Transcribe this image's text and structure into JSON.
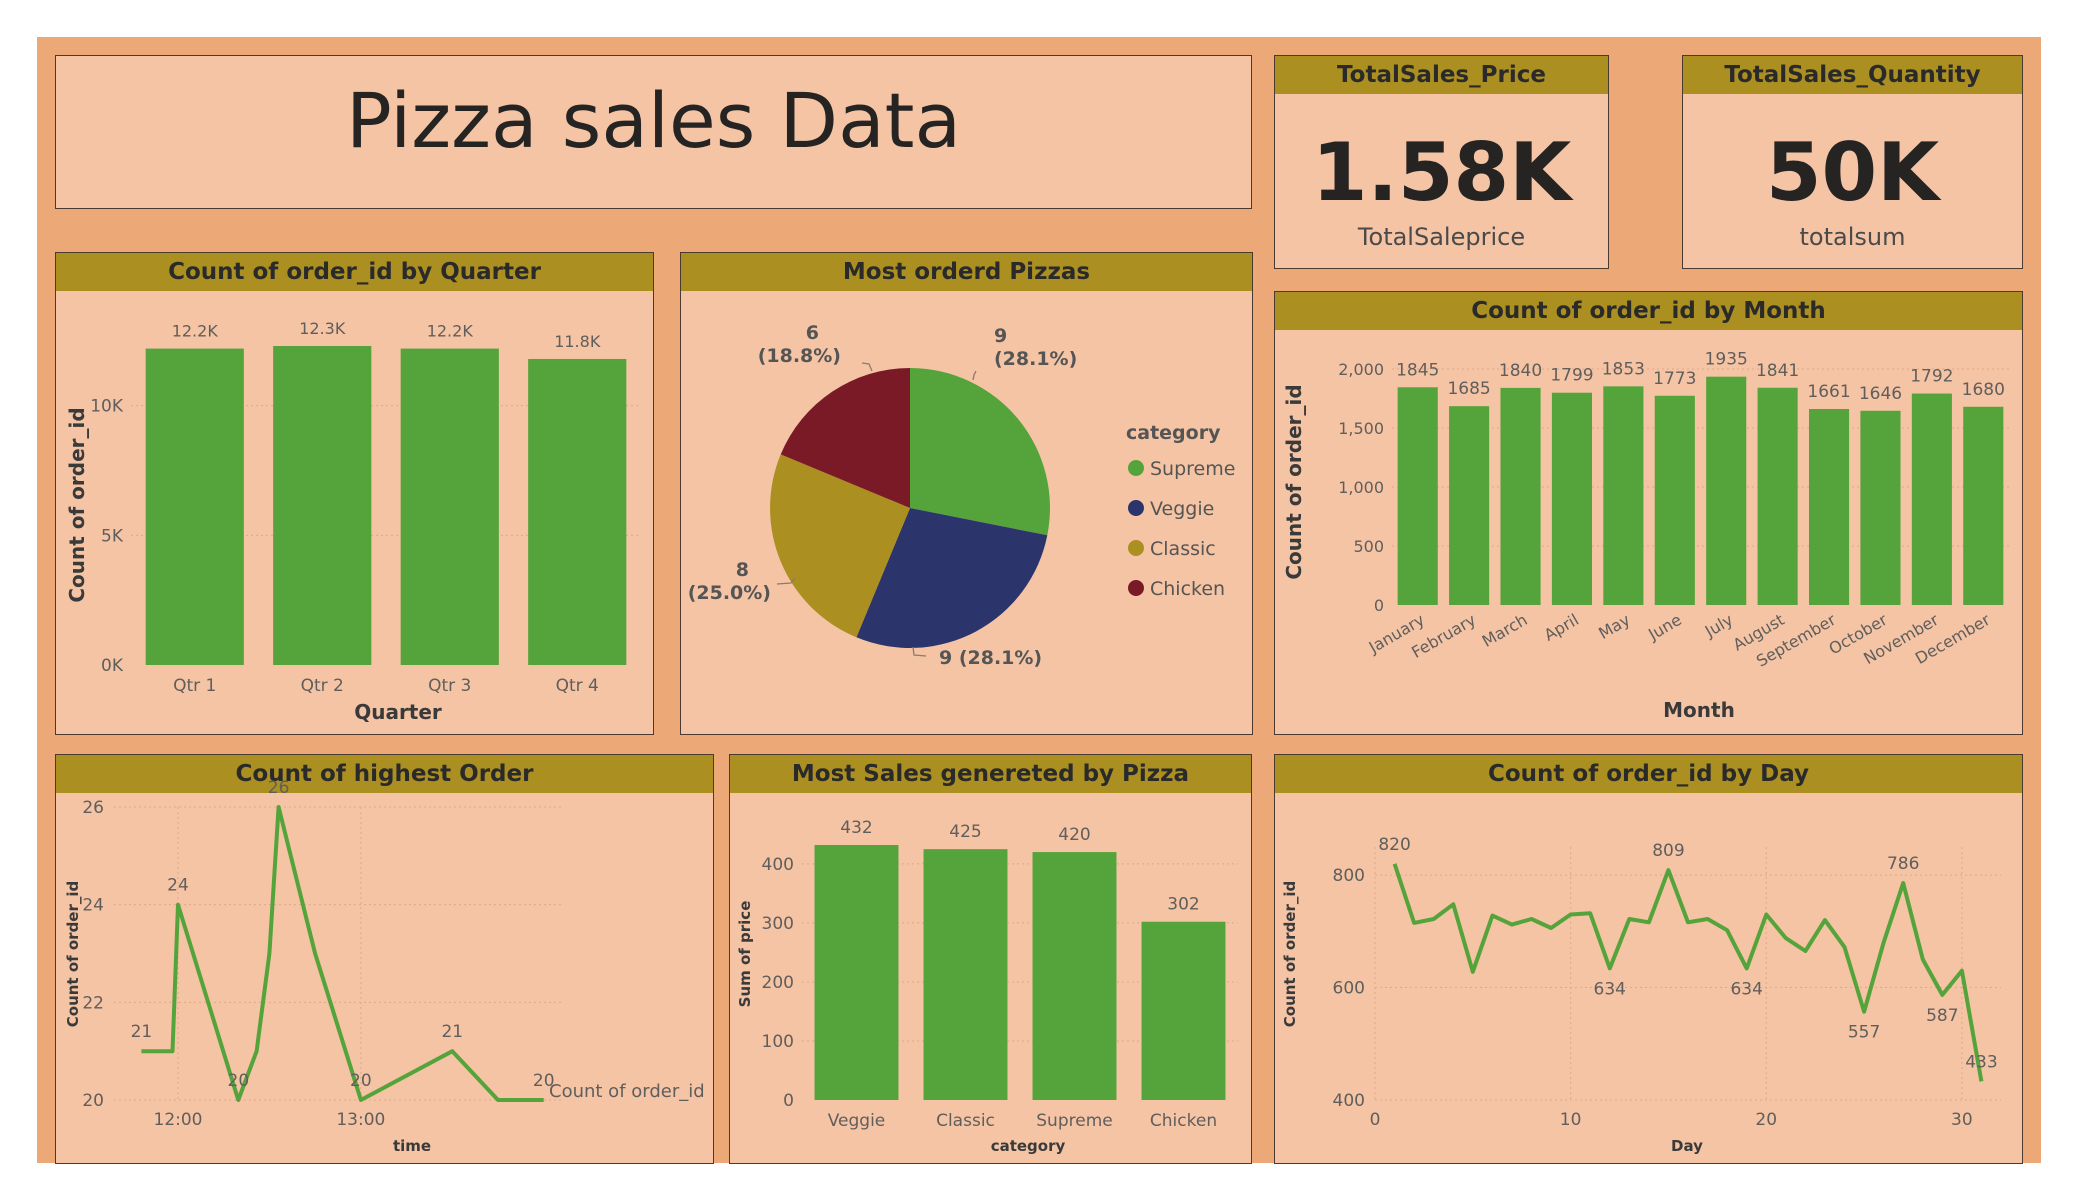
{
  "page_title": "Pizza sales Data",
  "colors": {
    "green": "#55a33b",
    "navy": "#2c356b",
    "olive": "#ab8f21",
    "maroon": "#7b1a27",
    "band": "#ab8f21",
    "panel": "#f4c4a5",
    "background": "#eda878"
  },
  "kpis": [
    {
      "title": "TotalSales_Price",
      "value": "1.58K",
      "label": "TotalSaleprice"
    },
    {
      "title": "TotalSales_Quantity",
      "value": "50K",
      "label": "totalsum"
    }
  ],
  "chart_data": [
    {
      "id": "quarter",
      "type": "bar",
      "title": "Count of order_id by Quarter",
      "xlabel": "Quarter",
      "ylabel": "Count of order_id",
      "categories": [
        "Qtr 1",
        "Qtr 2",
        "Qtr 3",
        "Qtr 4"
      ],
      "values": [
        12200,
        12300,
        12200,
        11800
      ],
      "data_labels": [
        "12.2K",
        "12.3K",
        "12.2K",
        "11.8K"
      ],
      "ylim": [
        0,
        12300
      ],
      "yticks": [
        0,
        5000,
        10000
      ],
      "ytick_labels": [
        "0K",
        "5K",
        "10K"
      ],
      "grid": true
    },
    {
      "id": "pie",
      "type": "pie",
      "title": "Most orderd Pizzas",
      "legend_title": "category",
      "legend_position": "right",
      "slices": [
        {
          "label": "Supreme",
          "value": 9,
          "percent": "28.1%",
          "color": "#55a33b"
        },
        {
          "label": "Veggie",
          "value": 9,
          "percent": "28.1%",
          "color": "#2c356b"
        },
        {
          "label": "Classic",
          "value": 8,
          "percent": "25.0%",
          "color": "#ab8f21"
        },
        {
          "label": "Chicken",
          "value": 6,
          "percent": "18.8%",
          "color": "#7b1a27"
        }
      ],
      "slice_labels": [
        {
          "value": "9",
          "pct": "(28.1%)"
        },
        {
          "text": "9 (28.1%)"
        },
        {
          "value": "8",
          "pct": "(25.0%)"
        },
        {
          "value": "6",
          "pct": "(18.8%)"
        }
      ]
    },
    {
      "id": "month",
      "type": "bar",
      "title": "Count of order_id by Month",
      "xlabel": "Month",
      "ylabel": "Count of order_id",
      "categories": [
        "January",
        "February",
        "March",
        "April",
        "May",
        "June",
        "July",
        "August",
        "September",
        "October",
        "November",
        "December"
      ],
      "values": [
        1845,
        1685,
        1840,
        1799,
        1853,
        1773,
        1935,
        1841,
        1661,
        1646,
        1792,
        1680
      ],
      "ylim": [
        0,
        2000
      ],
      "yticks": [
        0,
        500,
        1000,
        1500,
        2000
      ],
      "ytick_labels": [
        "0",
        "500",
        "1,000",
        "1,500",
        "2,000"
      ],
      "grid": true
    },
    {
      "id": "highest",
      "type": "line",
      "title": "Count of highest Order",
      "xlabel": "time",
      "ylabel": "Count of order_id",
      "legend": "Count of order_id",
      "x": [
        11.8,
        11.95,
        11.97,
        12.0,
        12.33,
        12.43,
        12.5,
        12.55,
        12.75,
        13.0,
        13.0,
        13.5,
        13.75,
        14.0,
        14.0
      ],
      "y": [
        21,
        21,
        21,
        24,
        20,
        21,
        23,
        26,
        23,
        20,
        20,
        21,
        20,
        20,
        20
      ],
      "xlim": [
        11.65,
        14.1
      ],
      "ylim": [
        20,
        26
      ],
      "xticks": [
        12,
        13
      ],
      "xtick_labels": [
        "12:00",
        "13:00"
      ],
      "yticks": [
        20,
        22,
        24,
        26
      ],
      "point_labels": [
        {
          "index": 0,
          "text": "21"
        },
        {
          "index": 3,
          "text": "24"
        },
        {
          "index": 4,
          "text": "20"
        },
        {
          "index": 7,
          "text": "26"
        },
        {
          "index": 9,
          "text": "20"
        },
        {
          "index": 11,
          "text": "21"
        },
        {
          "index": 14,
          "text": "20"
        }
      ]
    },
    {
      "id": "sales",
      "type": "bar",
      "title": "Most Sales genereted by Pizza",
      "xlabel": "category",
      "ylabel": "Sum of price",
      "categories": [
        "Veggie",
        "Classic",
        "Supreme",
        "Chicken"
      ],
      "values": [
        432,
        425,
        420,
        302
      ],
      "ylim": [
        0,
        432
      ],
      "yticks": [
        0,
        100,
        200,
        300,
        400
      ],
      "grid": true
    },
    {
      "id": "day",
      "type": "line",
      "title": "Count of order_id by Day",
      "xlabel": "Day",
      "ylabel": "Count of order_id",
      "x": [
        1,
        2,
        3,
        4,
        5,
        6,
        7,
        8,
        9,
        10,
        11,
        12,
        13,
        14,
        15,
        16,
        17,
        18,
        19,
        20,
        21,
        22,
        23,
        24,
        25,
        26,
        27,
        28,
        29,
        30,
        31
      ],
      "y": [
        820,
        715,
        722,
        748,
        628,
        728,
        712,
        722,
        706,
        730,
        732,
        634,
        722,
        716,
        809,
        716,
        722,
        702,
        634,
        730,
        688,
        665,
        720,
        672,
        557,
        680,
        786,
        650,
        587,
        630,
        433
      ],
      "xlim": [
        0,
        32
      ],
      "ylim": [
        400,
        850
      ],
      "xticks": [
        0,
        10,
        20,
        30
      ],
      "yticks": [
        400,
        600,
        800
      ],
      "point_labels": [
        {
          "index": 0,
          "text": "820"
        },
        {
          "index": 11,
          "text": "634"
        },
        {
          "index": 14,
          "text": "809"
        },
        {
          "index": 18,
          "text": "634"
        },
        {
          "index": 24,
          "text": "557"
        },
        {
          "index": 26,
          "text": "786"
        },
        {
          "index": 28,
          "text": "587"
        },
        {
          "index": 30,
          "text": "433"
        }
      ]
    }
  ]
}
